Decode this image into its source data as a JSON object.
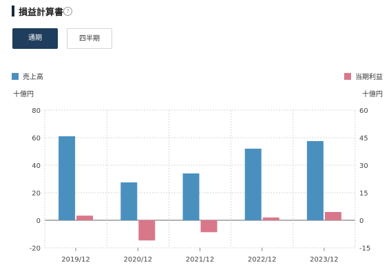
{
  "header": {
    "title": "損益計算書",
    "help_icon": "?"
  },
  "tabs": [
    {
      "label": "通期",
      "active": true
    },
    {
      "label": "四半期",
      "active": false
    }
  ],
  "legend": {
    "left": {
      "label": "売上高",
      "color": "#4a90bf"
    },
    "right": {
      "label": "当期利益",
      "color": "#d9778a"
    }
  },
  "units": {
    "left": "十億円",
    "right": "十億円"
  },
  "chart_data": {
    "type": "bar",
    "categories": [
      "2019/12",
      "2020/12",
      "2021/12",
      "2022/12",
      "2023/12"
    ],
    "series": [
      {
        "name": "売上高",
        "axis": "left",
        "color": "#4a90bf",
        "values": [
          61,
          27.5,
          34,
          52,
          57.5
        ]
      },
      {
        "name": "当期利益",
        "axis": "right",
        "color": "#d9778a",
        "values": [
          2.5,
          -11,
          -6.5,
          1.5,
          4.5
        ]
      }
    ],
    "y_left": {
      "min": -20,
      "max": 80,
      "ticks": [
        80,
        60,
        40,
        20,
        0,
        -20
      ],
      "label": "十億円"
    },
    "y_right": {
      "min": -15,
      "max": 60,
      "ticks": [
        60,
        45,
        30,
        15,
        0,
        -15
      ],
      "label": "十億円"
    },
    "grid": "dotted"
  }
}
